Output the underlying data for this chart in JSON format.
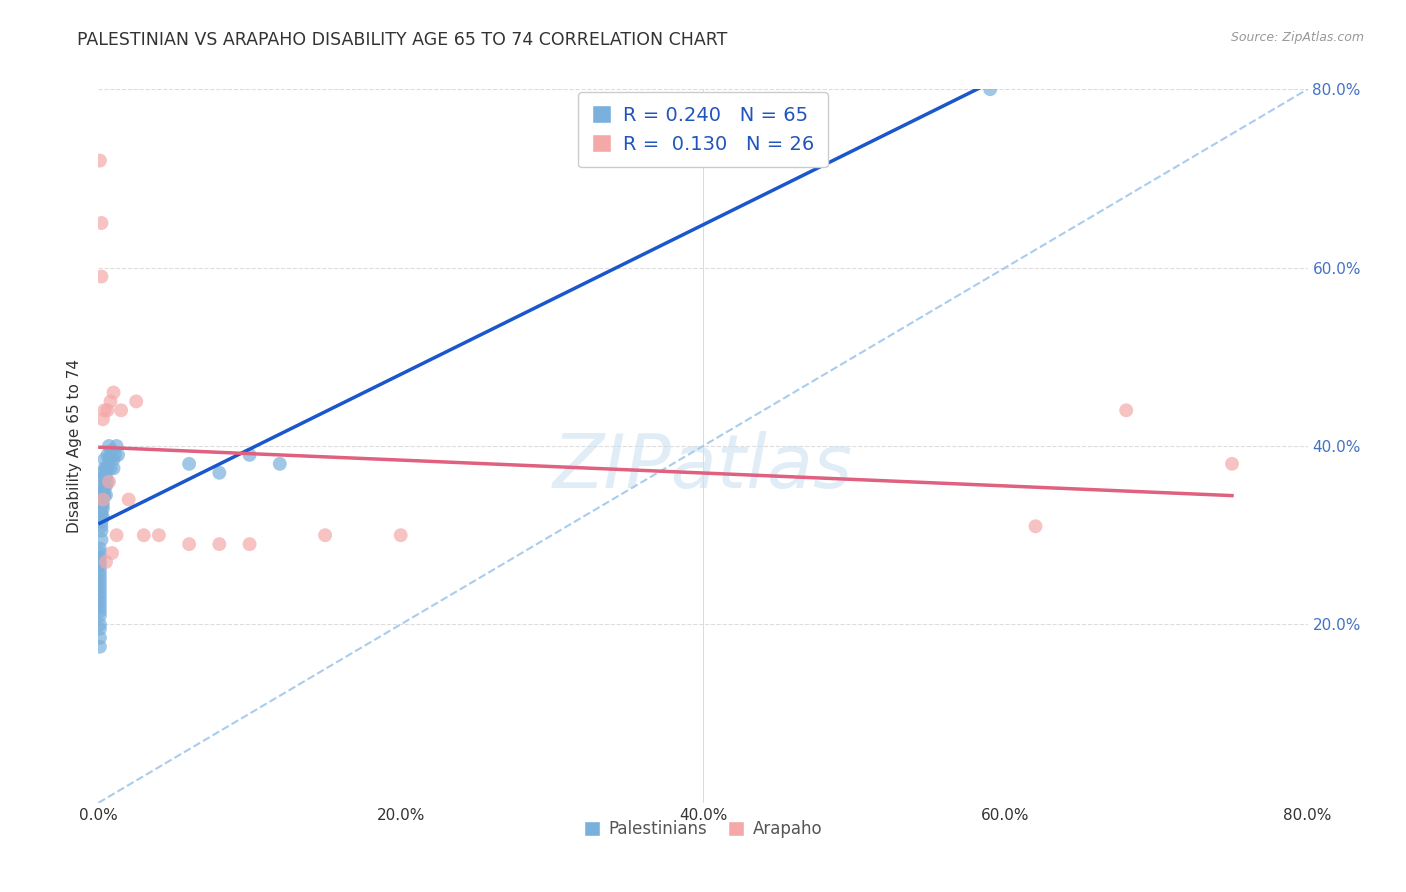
{
  "title": "PALESTINIAN VS ARAPAHO DISABILITY AGE 65 TO 74 CORRELATION CHART",
  "source": "Source: ZipAtlas.com",
  "ylabel": "Disability Age 65 to 74",
  "xlim": [
    0.0,
    0.8
  ],
  "ylim": [
    0.0,
    0.8
  ],
  "xtick_labels": [
    "0.0%",
    "20.0%",
    "40.0%",
    "60.0%",
    "80.0%"
  ],
  "xtick_values": [
    0.0,
    0.2,
    0.4,
    0.6,
    0.8
  ],
  "ytick_labels": [
    "20.0%",
    "40.0%",
    "60.0%",
    "80.0%"
  ],
  "ytick_values": [
    0.2,
    0.4,
    0.6,
    0.8
  ],
  "watermark": "ZIPatlas",
  "legend_r1": "0.240",
  "legend_n1": "65",
  "legend_r2": "0.130",
  "legend_n2": "26",
  "blue_color": "#7ab0dc",
  "pink_color": "#f4a8a8",
  "blue_line_color": "#1a56cc",
  "pink_line_color": "#e06080",
  "dashed_line_color": "#aaccee",
  "background_color": "#ffffff",
  "grid_color": "#dddddd",
  "palestinians_x": [
    0.001,
    0.001,
    0.001,
    0.001,
    0.001,
    0.001,
    0.001,
    0.001,
    0.001,
    0.001,
    0.001,
    0.001,
    0.001,
    0.001,
    0.001,
    0.001,
    0.001,
    0.001,
    0.001,
    0.001,
    0.002,
    0.002,
    0.002,
    0.002,
    0.002,
    0.002,
    0.002,
    0.002,
    0.002,
    0.002,
    0.003,
    0.003,
    0.003,
    0.003,
    0.003,
    0.003,
    0.003,
    0.003,
    0.004,
    0.004,
    0.004,
    0.004,
    0.004,
    0.005,
    0.005,
    0.005,
    0.005,
    0.006,
    0.006,
    0.006,
    0.007,
    0.007,
    0.008,
    0.008,
    0.009,
    0.01,
    0.01,
    0.011,
    0.012,
    0.013,
    0.06,
    0.08,
    0.1,
    0.12,
    0.59
  ],
  "palestinians_y": [
    0.285,
    0.28,
    0.275,
    0.27,
    0.265,
    0.26,
    0.255,
    0.25,
    0.245,
    0.24,
    0.235,
    0.23,
    0.225,
    0.22,
    0.215,
    0.21,
    0.2,
    0.195,
    0.185,
    0.175,
    0.345,
    0.34,
    0.335,
    0.33,
    0.325,
    0.32,
    0.315,
    0.31,
    0.305,
    0.295,
    0.37,
    0.365,
    0.355,
    0.35,
    0.345,
    0.335,
    0.33,
    0.32,
    0.385,
    0.375,
    0.365,
    0.355,
    0.345,
    0.375,
    0.365,
    0.355,
    0.345,
    0.39,
    0.375,
    0.36,
    0.4,
    0.385,
    0.39,
    0.375,
    0.395,
    0.385,
    0.375,
    0.39,
    0.4,
    0.39,
    0.38,
    0.37,
    0.39,
    0.38,
    0.8
  ],
  "arapaho_x": [
    0.001,
    0.002,
    0.002,
    0.003,
    0.003,
    0.004,
    0.005,
    0.006,
    0.007,
    0.008,
    0.009,
    0.01,
    0.012,
    0.015,
    0.02,
    0.025,
    0.03,
    0.04,
    0.06,
    0.08,
    0.1,
    0.15,
    0.2,
    0.62,
    0.68,
    0.75
  ],
  "arapaho_y": [
    0.72,
    0.65,
    0.59,
    0.43,
    0.34,
    0.44,
    0.27,
    0.44,
    0.36,
    0.45,
    0.28,
    0.46,
    0.3,
    0.44,
    0.34,
    0.45,
    0.3,
    0.3,
    0.29,
    0.29,
    0.29,
    0.3,
    0.3,
    0.31,
    0.44,
    0.38
  ]
}
